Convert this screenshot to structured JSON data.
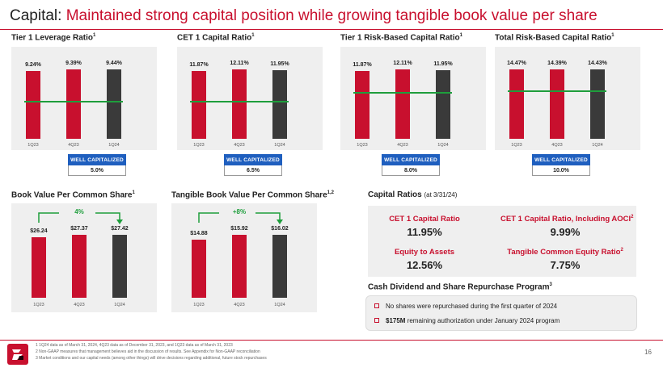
{
  "title": {
    "prefix": "Capital: ",
    "headline": "Maintained strong capital position while growing tangible book value per share"
  },
  "capital_charts": [
    {
      "name": "tier1-leverage",
      "title": "Tier 1 Leverage Ratio",
      "sup": "1",
      "categories": [
        "1Q23",
        "4Q23",
        "1Q24"
      ],
      "labels": [
        "9.24%",
        "9.39%",
        "9.44%"
      ],
      "values": [
        9.24,
        9.39,
        9.44
      ],
      "well_capitalized_label": "Well Capitalized",
      "threshold_label": "5.0%",
      "threshold": 5.0
    },
    {
      "name": "cet1-capital",
      "title": "CET 1 Capital Ratio",
      "sup": "1",
      "categories": [
        "1Q23",
        "4Q23",
        "1Q24"
      ],
      "labels": [
        "11.87%",
        "12.11%",
        "11.95%"
      ],
      "values": [
        11.87,
        12.11,
        11.95
      ],
      "well_capitalized_label": "Well Capitalized",
      "threshold_label": "6.5%",
      "threshold": 6.5
    },
    {
      "name": "tier1-risk-based",
      "title": "Tier 1 Risk-Based Capital Ratio",
      "sup": "1",
      "categories": [
        "1Q23",
        "4Q23",
        "1Q24"
      ],
      "labels": [
        "11.87%",
        "12.11%",
        "11.95%"
      ],
      "values": [
        11.87,
        12.11,
        11.95
      ],
      "well_capitalized_label": "Well Capitalized",
      "threshold_label": "8.0%",
      "threshold": 8.0
    },
    {
      "name": "total-risk-based",
      "title": "Total Risk-Based Capital Ratio",
      "sup": "1",
      "categories": [
        "1Q23",
        "4Q23",
        "1Q24"
      ],
      "labels": [
        "14.47%",
        "14.39%",
        "14.43%"
      ],
      "values": [
        14.47,
        14.39,
        14.43
      ],
      "well_capitalized_label": "Well Capitalized",
      "threshold_label": "10.0%",
      "threshold": 10.0
    }
  ],
  "book_charts": [
    {
      "name": "book-value",
      "title": "Book Value Per Common Share",
      "sup": "1",
      "categories": [
        "1Q23",
        "4Q23",
        "1Q24"
      ],
      "labels": [
        "$26.24",
        "$27.37",
        "$27.42"
      ],
      "values": [
        26.24,
        27.37,
        27.42
      ],
      "growth": "4%"
    },
    {
      "name": "tangible-book-value",
      "title": "Tangible Book Value Per Common Share",
      "sup": "1,2",
      "categories": [
        "1Q23",
        "4Q23",
        "1Q24"
      ],
      "labels": [
        "$14.88",
        "$15.92",
        "$16.02"
      ],
      "values": [
        14.88,
        15.92,
        16.02
      ],
      "growth": "+8%"
    }
  ],
  "capital_ratios": {
    "title": "Capital Ratios",
    "date": "(at 3/31/24)",
    "items": [
      {
        "label": "CET 1 Capital Ratio",
        "sup": "",
        "value": "11.95%"
      },
      {
        "label": "CET 1 Capital Ratio, Including AOCI",
        "sup": "2",
        "value": "9.99%"
      },
      {
        "label": "Equity to Assets",
        "sup": "",
        "value": "12.56%"
      },
      {
        "label": "Tangible Common Equity Ratio",
        "sup": "2",
        "value": "7.75%"
      }
    ]
  },
  "dividend": {
    "title": "Cash Dividend and Share Repurchase Program",
    "sup": "3",
    "line1": "No shares were repurchased during the first quarter of 2024",
    "line2_bold": "$175M",
    "line2_rest": " remaining authorization under January 2024 program"
  },
  "footnotes": [
    "1   1Q24 data as of March 31, 2024, 4Q23 data as of December 31, 2023, and 1Q23 data as of March 31, 2023",
    "2   Non-GAAP measures that management believes aid in the discussion of results. See Appendix for Non-GAAP reconciliation",
    "3   Market conditions and our capital needs (among other things) will drive decisions regarding additional, future stock repurchases"
  ],
  "page_number": "16",
  "colors": {
    "brand_red": "#c8102e",
    "bar_dark": "#3a3a3a",
    "threshold_green": "#1e9e3c",
    "well_capitalized_blue": "#1f5fbf",
    "panel_gray": "#efefef"
  }
}
